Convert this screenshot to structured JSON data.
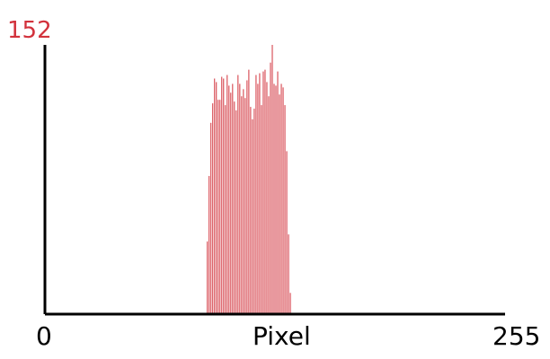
{
  "chart_data": {
    "type": "bar",
    "xlabel": "Pixel",
    "ylabel": "",
    "xlim": [
      0,
      255
    ],
    "ylim": [
      0,
      152
    ],
    "y_max_label": "152",
    "x_tick_labels": [
      "0",
      "255"
    ],
    "grid": false,
    "legend": "none",
    "bar_color": "#d2323c",
    "axis_color": "#000000",
    "series": [
      {
        "x": [
          90,
          91,
          92,
          93,
          94,
          95,
          96,
          97,
          98,
          99,
          100,
          101,
          102,
          103,
          104,
          105,
          106,
          107,
          108,
          109,
          110,
          111,
          112,
          113,
          114,
          115,
          116,
          117,
          118,
          119,
          120,
          121,
          122,
          123,
          124,
          125,
          126,
          127,
          128,
          129,
          130,
          131,
          132,
          133,
          134,
          135,
          136
        ],
        "values": [
          41,
          78,
          108,
          119,
          133,
          131,
          121,
          121,
          134,
          133,
          118,
          135,
          129,
          125,
          130,
          120,
          115,
          135,
          130,
          123,
          127,
          122,
          132,
          138,
          117,
          110,
          116,
          135,
          130,
          136,
          118,
          137,
          138,
          131,
          123,
          142,
          152,
          130,
          129,
          137,
          124,
          130,
          128,
          118,
          92,
          45,
          12
        ]
      }
    ]
  }
}
